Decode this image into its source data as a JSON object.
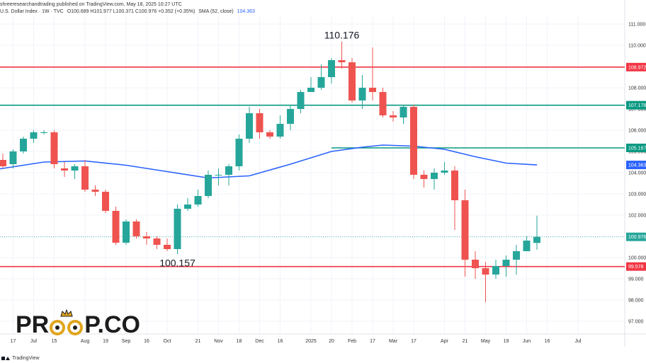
{
  "header": {
    "publisher": "shreeresearchandtrading published on TradingView.com, May 18, 2025 10:27 UTC",
    "title": "U.S. Dollar Index · 1W · TVC",
    "ohlc": "O100.689 H101.977 L100.371 C100.976 +0.352 (+0.35%)",
    "sma_label": "SMA (52, close)",
    "sma_value": "104.363"
  },
  "footer": {
    "brand": "TradingView"
  },
  "logo": {
    "left": "PR",
    "right": "P.CO"
  },
  "colors": {
    "up": "#26a69a",
    "down": "#ef5350",
    "sma": "#2962ff",
    "resistance": "#f23645",
    "support": "#089981",
    "grid": "#f0f3fa"
  },
  "chart_data": {
    "type": "candlestick",
    "title": "U.S. Dollar Index · 1W · TVC",
    "ylim": [
      96.4,
      111.4
    ],
    "y_ticks": [
      "111.000",
      "110.000",
      "109.000",
      "108.000",
      "107.000",
      "106.000",
      "105.000",
      "104.000",
      "103.000",
      "102.000",
      "101.000",
      "100.000",
      "99.000",
      "98.000",
      "97.000"
    ],
    "x_ticks": [
      {
        "label": "Jun",
        "week": -1
      },
      {
        "label": "17",
        "week": 1
      },
      {
        "label": "Jul",
        "week": 3
      },
      {
        "label": "15",
        "week": 5
      },
      {
        "label": "Aug",
        "week": 8
      },
      {
        "label": "19",
        "week": 10
      },
      {
        "label": "Sep",
        "week": 12
      },
      {
        "label": "16",
        "week": 14
      },
      {
        "label": "Oct",
        "week": 16
      },
      {
        "label": "21",
        "week": 19
      },
      {
        "label": "Nov",
        "week": 21
      },
      {
        "label": "18",
        "week": 23
      },
      {
        "label": "Dec",
        "week": 25
      },
      {
        "label": "16",
        "week": 27
      },
      {
        "label": "2025",
        "week": 30
      },
      {
        "label": "20",
        "week": 32
      },
      {
        "label": "Feb",
        "week": 34
      },
      {
        "label": "17",
        "week": 36
      },
      {
        "label": "Mar",
        "week": 38
      },
      {
        "label": "17",
        "week": 40
      },
      {
        "label": "Apr",
        "week": 43
      },
      {
        "label": "21",
        "week": 45
      },
      {
        "label": "May",
        "week": 47
      },
      {
        "label": "19",
        "week": 49
      },
      {
        "label": "Jun",
        "week": 51
      },
      {
        "label": "16",
        "week": 53
      },
      {
        "label": "Jul",
        "week": 56
      }
    ],
    "candles": [
      [
        104.6,
        104.3,
        104.9,
        104.2
      ],
      [
        104.4,
        105.0,
        105.1,
        104.2
      ],
      [
        105.0,
        105.6,
        105.7,
        104.9
      ],
      [
        105.6,
        105.9,
        106.0,
        105.4
      ],
      [
        105.9,
        105.9,
        106.0,
        105.8
      ],
      [
        105.9,
        104.4,
        106.0,
        104.2
      ],
      [
        104.2,
        104.1,
        104.5,
        103.8
      ],
      [
        104.1,
        104.3,
        104.4,
        103.7
      ],
      [
        104.3,
        103.2,
        104.6,
        103.1
      ],
      [
        103.2,
        103.1,
        103.4,
        102.9
      ],
      [
        103.1,
        102.2,
        103.2,
        102.1
      ],
      [
        102.2,
        100.7,
        102.4,
        100.6
      ],
      [
        100.7,
        101.7,
        101.8,
        100.6
      ],
      [
        101.7,
        101.0,
        101.8,
        100.9
      ],
      [
        101.0,
        100.9,
        101.2,
        100.6
      ],
      [
        100.9,
        100.6,
        101.0,
        100.4
      ],
      [
        100.6,
        100.4,
        100.9,
        100.3
      ],
      [
        100.4,
        102.3,
        102.5,
        100.157
      ],
      [
        102.3,
        102.5,
        102.8,
        102.2
      ],
      [
        102.5,
        102.9,
        103.2,
        102.4
      ],
      [
        102.9,
        103.9,
        104.1,
        102.8
      ],
      [
        103.9,
        103.9,
        104.2,
        103.4
      ],
      [
        103.9,
        104.3,
        104.4,
        103.4
      ],
      [
        104.3,
        105.6,
        105.8,
        104.1
      ],
      [
        105.6,
        106.8,
        107.1,
        105.4
      ],
      [
        106.8,
        105.9,
        107.0,
        105.6
      ],
      [
        105.9,
        105.7,
        106.0,
        105.6
      ],
      [
        105.7,
        106.3,
        106.7,
        105.6
      ],
      [
        106.3,
        107.0,
        107.2,
        106.0
      ],
      [
        107.0,
        107.8,
        107.9,
        106.8
      ],
      [
        107.8,
        108.0,
        108.5,
        107.8
      ],
      [
        108.0,
        108.5,
        109.1,
        107.9
      ],
      [
        108.5,
        109.3,
        109.4,
        108.2
      ],
      [
        109.3,
        109.2,
        110.176,
        108.9
      ],
      [
        109.2,
        107.4,
        109.4,
        107.3
      ],
      [
        107.4,
        108.0,
        108.6,
        107.0
      ],
      [
        108.0,
        107.8,
        109.9,
        107.4
      ],
      [
        107.8,
        106.7,
        108.0,
        106.6
      ],
      [
        106.7,
        106.6,
        106.9,
        106.4
      ],
      [
        106.6,
        107.1,
        107.2,
        106.3
      ],
      [
        107.1,
        103.9,
        107.2,
        103.7
      ],
      [
        103.9,
        103.7,
        104.1,
        103.3
      ],
      [
        103.7,
        104.0,
        104.2,
        103.2
      ],
      [
        104.0,
        104.1,
        104.5,
        103.9
      ],
      [
        104.1,
        102.7,
        104.3,
        101.3
      ],
      [
        102.7,
        99.9,
        103.2,
        99.1
      ],
      [
        99.9,
        99.5,
        100.3,
        99.0
      ],
      [
        99.5,
        99.2,
        99.8,
        97.9
      ],
      [
        99.2,
        99.6,
        99.9,
        99.0
      ],
      [
        99.6,
        99.9,
        100.1,
        99.1
      ],
      [
        99.9,
        100.3,
        100.6,
        99.2
      ],
      [
        100.3,
        100.8,
        101.0,
        100.5
      ],
      [
        100.689,
        100.976,
        101.977,
        100.371
      ]
    ],
    "sma": [
      [
        -2,
        104.05
      ],
      [
        0,
        104.2
      ],
      [
        4,
        104.5
      ],
      [
        8,
        104.55
      ],
      [
        12,
        104.35
      ],
      [
        16,
        104.05
      ],
      [
        20,
        103.75
      ],
      [
        24,
        103.85
      ],
      [
        28,
        104.4
      ],
      [
        32,
        105.0
      ],
      [
        35,
        105.2
      ],
      [
        37,
        105.3
      ],
      [
        40,
        105.25
      ],
      [
        43,
        105.1
      ],
      [
        46,
        104.75
      ],
      [
        49,
        104.45
      ],
      [
        52,
        104.363
      ]
    ],
    "levels": [
      {
        "value": 108.972,
        "label": "108.972",
        "kind": "resistance",
        "from_week": null
      },
      {
        "value": 107.178,
        "label": "107.178",
        "kind": "support",
        "from_week": null
      },
      {
        "value": 105.167,
        "label": "105.167",
        "kind": "support",
        "from_week": 32
      },
      {
        "value": 99.578,
        "label": "99.578",
        "kind": "resistance",
        "from_week": null
      }
    ],
    "last_price": "100.976",
    "sma_last": "104.363",
    "annotations": [
      {
        "text": "110.176",
        "week": 33,
        "price": 110.176,
        "pos": "above"
      },
      {
        "text": "100.157",
        "week": 17,
        "price": 100.157,
        "pos": "below"
      }
    ]
  }
}
